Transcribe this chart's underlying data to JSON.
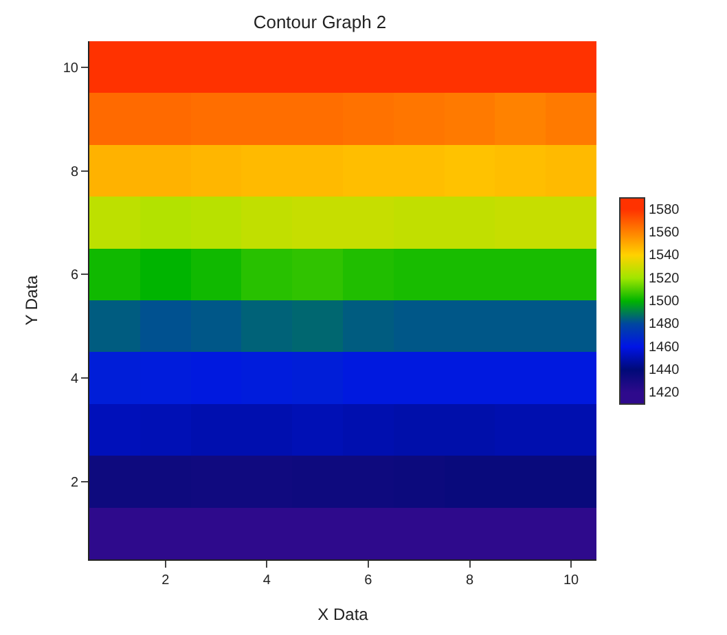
{
  "chart_data": {
    "type": "heatmap",
    "title": "Contour Graph 2",
    "xlabel": "X Data",
    "ylabel": "Y Data",
    "categories": [
      null,
      "2",
      null,
      "4",
      null,
      "6",
      null,
      "8",
      null,
      "10"
    ],
    "y_categories": [
      "10",
      null,
      "8",
      null,
      "6",
      null,
      "4",
      null,
      "2",
      null
    ],
    "cells": [
      [
        1584,
        1584,
        1583,
        1583,
        1584,
        1584,
        1585,
        1587,
        1584,
        1585
      ],
      [
        1566,
        1566,
        1565,
        1565,
        1565,
        1564,
        1563,
        1562,
        1560,
        1562
      ],
      [
        1548,
        1548,
        1547,
        1546,
        1546,
        1545,
        1545,
        1544,
        1545,
        1546
      ],
      [
        1526,
        1524,
        1525,
        1527,
        1528,
        1528,
        1527,
        1527,
        1528,
        1528
      ],
      [
        1502,
        1500,
        1502,
        1505,
        1506,
        1504,
        1503,
        1503,
        1503,
        1503
      ],
      [
        1484,
        1482,
        1483,
        1485,
        1486,
        1484,
        1483,
        1483,
        1483,
        1483
      ],
      [
        1464,
        1463,
        1462,
        1463,
        1464,
        1462,
        1462,
        1462,
        1462,
        1462
      ],
      [
        1452,
        1451,
        1450,
        1450,
        1451,
        1450,
        1449,
        1449,
        1450,
        1450
      ],
      [
        1434,
        1434,
        1433,
        1433,
        1434,
        1434,
        1435,
        1436,
        1436,
        1436
      ],
      [
        1414,
        1414,
        1413,
        1413,
        1414,
        1414,
        1415,
        1416,
        1416,
        1416
      ]
    ],
    "colors": [
      "#2e0a8c",
      "#000a78",
      "#0014e6",
      "#0046a0",
      "#00b400",
      "#a0e600",
      "#ffd200",
      "#ff8200",
      "#ff3200"
    ],
    "clim": [
      1410,
      1590
    ],
    "cticks": [
      1420,
      1440,
      1460,
      1480,
      1500,
      1520,
      1540,
      1560,
      1580
    ]
  }
}
